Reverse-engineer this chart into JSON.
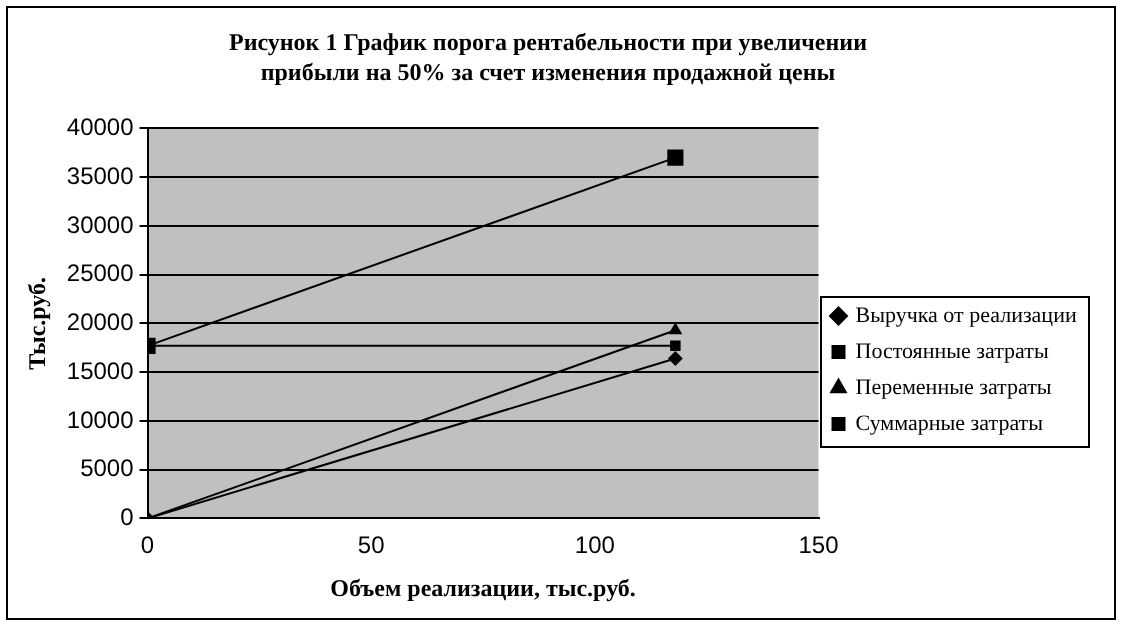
{
  "chart_data": {
    "type": "line",
    "title": "Рисунок 1 График порога рентабельности при увеличении прибыли на 50% за счет изменения продажной цены",
    "xlabel": "Объем реализации, тыс.руб.",
    "ylabel": "Тыс.руб.",
    "xlim": [
      0,
      150
    ],
    "xticks": [
      0,
      50,
      100,
      150
    ],
    "ylim": [
      0,
      40000
    ],
    "yticks": [
      0,
      5000,
      10000,
      15000,
      20000,
      25000,
      30000,
      35000,
      40000
    ],
    "x": [
      0,
      118
    ],
    "grid": "y",
    "legend": "right",
    "line_style": "solid",
    "series": [
      {
        "name": "Выручка от реализации",
        "color": "#000000",
        "marker": "diamond",
        "values": [
          0,
          16400
        ]
      },
      {
        "name": "Постоянные затраты",
        "color": "#000000",
        "marker": "square",
        "values": [
          17700,
          17700
        ]
      },
      {
        "name": "Переменные затраты",
        "color": "#000000",
        "marker": "triangle",
        "values": [
          0,
          19300
        ]
      },
      {
        "name": "Суммарные затраты",
        "color": "#000000",
        "marker": "square",
        "values": [
          17700,
          37000
        ]
      }
    ]
  }
}
